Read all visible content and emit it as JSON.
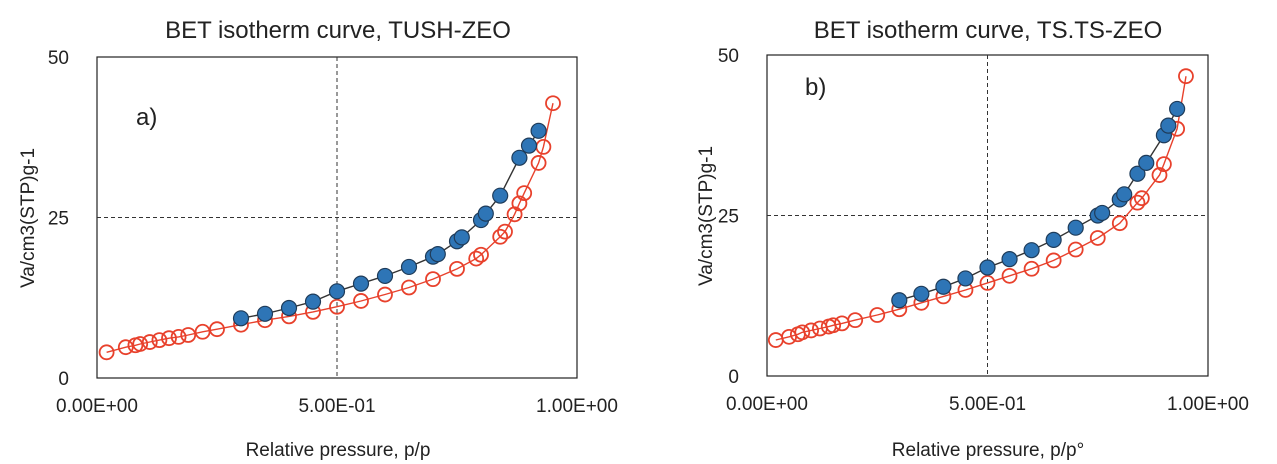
{
  "chart_data": [
    {
      "type": "scatter",
      "panel_label": "a)",
      "title": "BET isotherm curve, TUSH-ZEO",
      "xlabel": "Relative pressure, p/p",
      "ylabel": "Va/cm3(STP)g-1",
      "xlim": [
        0,
        1.0
      ],
      "ylim": [
        0,
        50
      ],
      "x_ticks": [
        0,
        0.5,
        1.0
      ],
      "x_tick_labels": [
        "0.00E+00",
        "5.00E-01",
        "1.00E+00"
      ],
      "y_ticks": [
        0,
        25,
        50
      ],
      "y_tick_labels": [
        "0",
        "25",
        "50"
      ],
      "reference_lines": {
        "x": 0.5,
        "y": 25
      },
      "series": [
        {
          "role": "adsorption",
          "marker": "open-circle",
          "color": "#e8412c",
          "x": [
            0.02,
            0.06,
            0.08,
            0.09,
            0.11,
            0.13,
            0.15,
            0.17,
            0.19,
            0.22,
            0.25,
            0.3,
            0.35,
            0.4,
            0.45,
            0.5,
            0.55,
            0.6,
            0.65,
            0.7,
            0.75,
            0.79,
            0.8,
            0.84,
            0.85,
            0.87,
            0.88,
            0.89,
            0.92,
            0.93,
            0.95
          ],
          "y": [
            4.0,
            4.8,
            5.1,
            5.3,
            5.6,
            5.9,
            6.2,
            6.4,
            6.7,
            7.2,
            7.6,
            8.3,
            9.0,
            9.6,
            10.3,
            11.1,
            12.0,
            13.0,
            14.1,
            15.4,
            17.0,
            18.6,
            19.2,
            22.0,
            22.8,
            25.5,
            27.2,
            28.8,
            33.5,
            36.0,
            42.8
          ]
        },
        {
          "role": "desorption",
          "marker": "filled-circle",
          "color": "#2e75b6",
          "x": [
            0.3,
            0.35,
            0.4,
            0.45,
            0.5,
            0.55,
            0.6,
            0.65,
            0.7,
            0.71,
            0.75,
            0.76,
            0.8,
            0.81,
            0.84,
            0.88,
            0.9,
            0.92
          ],
          "y": [
            9.3,
            10.0,
            10.9,
            11.9,
            13.5,
            14.7,
            15.9,
            17.3,
            18.9,
            19.3,
            21.3,
            21.9,
            24.6,
            25.6,
            28.4,
            34.3,
            36.2,
            38.5
          ]
        }
      ]
    },
    {
      "type": "scatter",
      "panel_label": "b)",
      "title": "BET isotherm curve, TS.TS-ZEO",
      "xlabel": "Relative pressure, p/p°",
      "ylabel": "Va/cm3(STP)g-1",
      "xlim": [
        0,
        1.0
      ],
      "ylim": [
        0,
        50
      ],
      "x_ticks": [
        0,
        0.5,
        1.0
      ],
      "x_tick_labels": [
        "0.00E+00",
        "5.00E-01",
        "1.00E+00"
      ],
      "y_ticks": [
        0,
        25,
        50
      ],
      "y_tick_labels": [
        "0",
        "25",
        "50"
      ],
      "reference_lines": {
        "x": 0.5,
        "y": 25
      },
      "series": [
        {
          "role": "adsorption",
          "marker": "open-circle",
          "color": "#e8412c",
          "x": [
            0.02,
            0.05,
            0.07,
            0.08,
            0.1,
            0.12,
            0.14,
            0.15,
            0.17,
            0.2,
            0.25,
            0.3,
            0.35,
            0.4,
            0.45,
            0.5,
            0.55,
            0.6,
            0.65,
            0.7,
            0.75,
            0.8,
            0.84,
            0.85,
            0.89,
            0.9,
            0.93,
            0.95
          ],
          "y": [
            5.6,
            6.1,
            6.5,
            6.8,
            7.1,
            7.4,
            7.7,
            7.9,
            8.2,
            8.7,
            9.5,
            10.4,
            11.4,
            12.4,
            13.4,
            14.5,
            15.6,
            16.7,
            18.0,
            19.7,
            21.5,
            23.8,
            27.0,
            27.7,
            31.3,
            33.0,
            38.5,
            46.7
          ]
        },
        {
          "role": "desorption",
          "marker": "filled-circle",
          "color": "#2e75b6",
          "x": [
            0.3,
            0.35,
            0.4,
            0.45,
            0.5,
            0.55,
            0.6,
            0.65,
            0.7,
            0.75,
            0.76,
            0.8,
            0.81,
            0.84,
            0.86,
            0.9,
            0.91,
            0.93
          ],
          "y": [
            11.8,
            12.8,
            13.9,
            15.2,
            16.9,
            18.2,
            19.6,
            21.2,
            23.1,
            25.0,
            25.4,
            27.5,
            28.3,
            31.5,
            33.2,
            37.5,
            39.0,
            41.6
          ]
        }
      ]
    }
  ]
}
